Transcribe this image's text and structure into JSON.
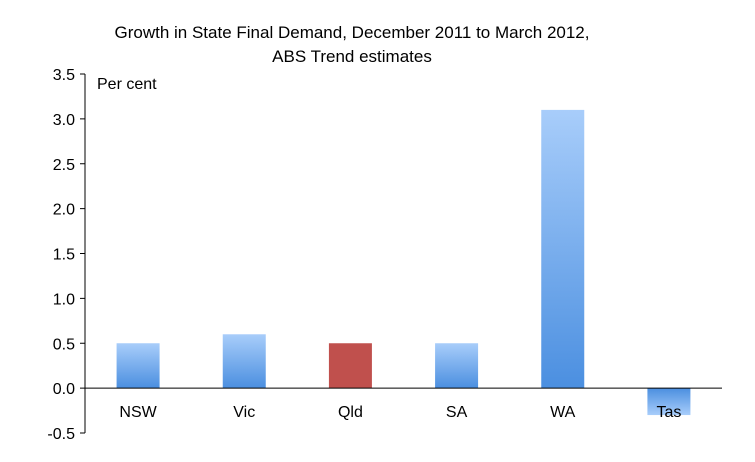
{
  "chart_data": {
    "type": "bar",
    "title_lines": [
      "Growth in State Final Demand, December 2011 to March 2012,",
      "ABS Trend estimates"
    ],
    "ylabel": "Per cent",
    "xlabel": "",
    "categories": [
      "NSW",
      "Vic",
      "Qld",
      "SA",
      "WA",
      "Tas"
    ],
    "values": [
      0.5,
      0.6,
      0.5,
      0.5,
      3.1,
      -0.3
    ],
    "highlight_index": 2,
    "ylim": [
      -0.5,
      3.5
    ],
    "yticks": [
      "3.5",
      "3.0",
      "2.5",
      "2.0",
      "1.5",
      "1.0",
      "0.5",
      "0.0",
      "-0.5"
    ],
    "grid": false,
    "legend": "none",
    "colors": {
      "bar_top": "#a8cdfa",
      "bar_bottom": "#4b8fe0",
      "highlight": "#c0504d",
      "axis": "#000000"
    }
  }
}
